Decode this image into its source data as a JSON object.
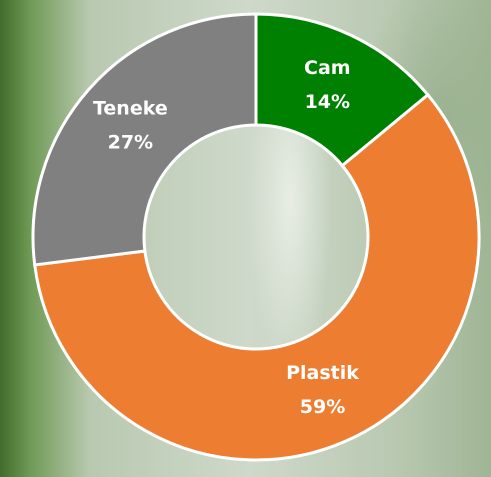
{
  "chart_data": {
    "type": "donut",
    "categories": [
      "Cam",
      "Plastik",
      "Teneke"
    ],
    "values": [
      14,
      59,
      27
    ],
    "value_labels": [
      "14%",
      "59%",
      "27%"
    ],
    "colors": [
      "#008000",
      "#ed7d31",
      "#808080"
    ]
  }
}
